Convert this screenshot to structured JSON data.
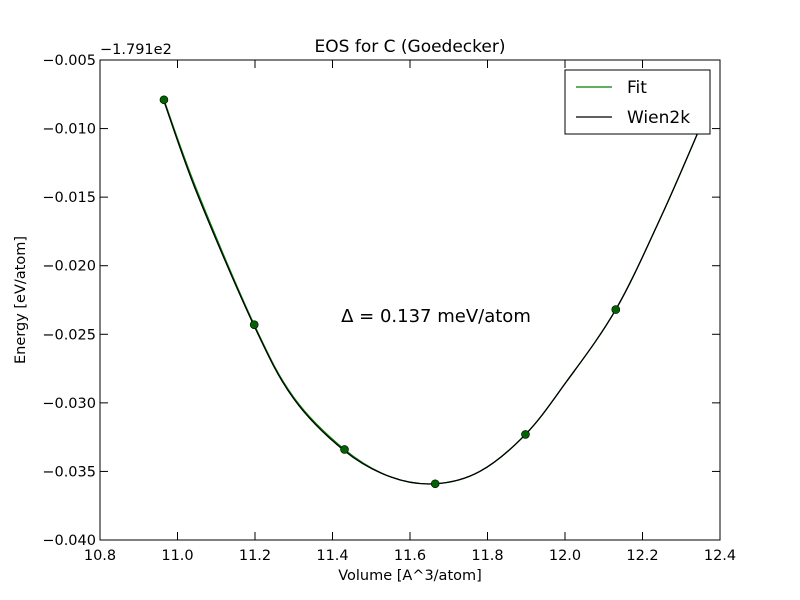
{
  "chart_data": {
    "type": "line",
    "title": "EOS for C (Goedecker)",
    "xlabel": "Volume [A^3/atom]",
    "ylabel": "Energy [eV/atom]",
    "y_offset_label": "−1.791e2",
    "xlim": [
      10.8,
      12.4
    ],
    "ylim": [
      -0.04,
      -0.005
    ],
    "x_ticks": [
      10.8,
      11.0,
      11.2,
      11.4,
      11.6,
      11.8,
      12.0,
      12.2,
      12.4
    ],
    "x_tick_labels": [
      "10.8",
      "11.0",
      "11.2",
      "11.4",
      "11.6",
      "11.8",
      "12.0",
      "12.2",
      "12.4"
    ],
    "y_ticks": [
      -0.005,
      -0.01,
      -0.015,
      -0.02,
      -0.025,
      -0.03,
      -0.035,
      -0.04
    ],
    "y_tick_labels": [
      "−0.005",
      "−0.010",
      "−0.015",
      "−0.020",
      "−0.025",
      "−0.030",
      "−0.035",
      "−0.040"
    ],
    "grid": false,
    "legend_position": "top-right",
    "annotation": "Δ = 0.137 meV/atom",
    "points": {
      "x": [
        10.965,
        11.198,
        11.431,
        11.665,
        11.898,
        12.131
      ],
      "y": [
        -0.0079,
        -0.0243,
        -0.0334,
        -0.0359,
        -0.0323,
        -0.0232
      ],
      "color": "#006400"
    },
    "series": [
      {
        "name": "Fit",
        "color": "#008000",
        "x": [
          10.965,
          11.05,
          11.198,
          11.3,
          11.431,
          11.55,
          11.665,
          11.78,
          11.898,
          12.0,
          12.131,
          12.25,
          12.355
        ],
        "y": [
          -0.0079,
          -0.0145,
          -0.0243,
          -0.0296,
          -0.0334,
          -0.0354,
          -0.0359,
          -0.035,
          -0.0323,
          -0.0286,
          -0.0232,
          -0.0163,
          -0.0095
        ]
      },
      {
        "name": "Wien2k",
        "color": "#000000",
        "x": [
          10.965,
          11.05,
          11.198,
          11.3,
          11.431,
          11.55,
          11.665,
          11.78,
          11.898,
          12.0,
          12.131,
          12.25,
          12.355
        ],
        "y": [
          -0.008,
          -0.0147,
          -0.0244,
          -0.0297,
          -0.0335,
          -0.0354,
          -0.0359,
          -0.035,
          -0.0323,
          -0.0286,
          -0.0232,
          -0.0163,
          -0.0095
        ]
      }
    ]
  }
}
